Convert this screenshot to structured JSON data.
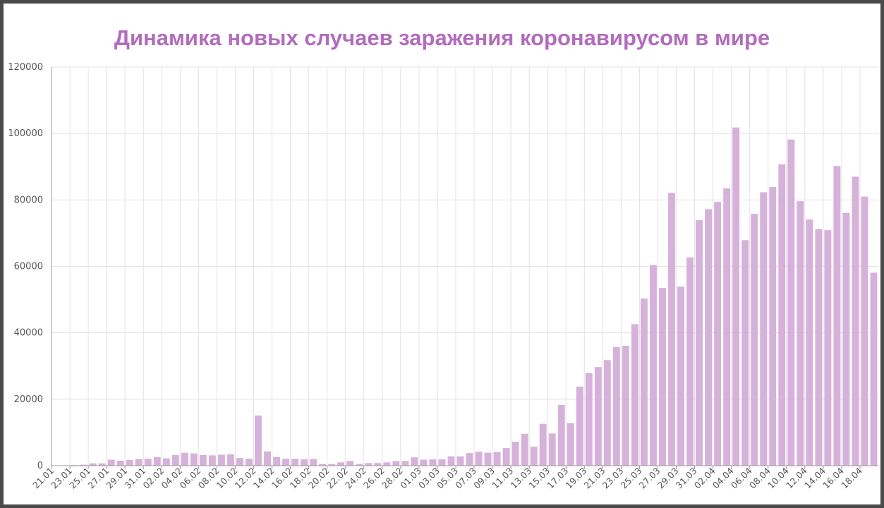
{
  "chart_data": {
    "type": "bar",
    "title": "Динамика новых случаев заражения коронавирусом в мире",
    "xlabel": "",
    "ylabel": "",
    "ylim": [
      0,
      120000
    ],
    "yticks": [
      0,
      20000,
      40000,
      60000,
      80000,
      100000,
      120000
    ],
    "grid": true,
    "legend": "none",
    "categories": [
      "21.01",
      "22.01",
      "23.01",
      "24.01",
      "25.01",
      "26.01",
      "27.01",
      "28.01",
      "29.01",
      "30.01",
      "31.01",
      "01.02",
      "02.02",
      "03.02",
      "04.02",
      "05.02",
      "06.02",
      "07.02",
      "08.02",
      "09.02",
      "10.02",
      "11.02",
      "12.02",
      "13.02",
      "14.02",
      "15.02",
      "16.02",
      "17.02",
      "18.02",
      "19.02",
      "20.02",
      "21.02",
      "22.02",
      "23.02",
      "24.02",
      "25.02",
      "26.02",
      "27.02",
      "28.02",
      "29.02",
      "01.03",
      "02.03",
      "03.03",
      "04.03",
      "05.03",
      "06.03",
      "07.03",
      "08.03",
      "09.03",
      "10.03",
      "11.03",
      "12.03",
      "13.03",
      "14.03",
      "15.03",
      "16.03",
      "17.03",
      "18.03",
      "19.03",
      "20.03",
      "21.03",
      "22.03",
      "23.03",
      "24.03",
      "25.03",
      "26.03",
      "27.03",
      "28.03",
      "29.03",
      "30.03",
      "31.03",
      "01.04",
      "02.04",
      "03.04",
      "04.04",
      "05.04",
      "06.04",
      "07.04",
      "08.04",
      "09.04",
      "10.04",
      "11.04",
      "12.04",
      "13.04",
      "14.04",
      "15.04",
      "16.04",
      "17.04",
      "18.04",
      "19.04"
    ],
    "values": [
      0,
      0,
      200,
      300,
      700,
      700,
      1800,
      1500,
      1700,
      2000,
      2100,
      2600,
      2200,
      3200,
      3900,
      3700,
      3200,
      3100,
      3300,
      3400,
      2300,
      2100,
      15100,
      4300,
      2600,
      2100,
      2100,
      1900,
      2000,
      500,
      500,
      1000,
      1400,
      500,
      800,
      800,
      1000,
      1400,
      1400,
      2500,
      1800,
      1900,
      1900,
      2800,
      2800,
      3800,
      4200,
      3900,
      4100,
      5300,
      7200,
      9600,
      5700,
      12600,
      9700,
      18300,
      12800,
      23800,
      27900,
      29700,
      31800,
      35700,
      36100,
      42600,
      50300,
      60400,
      53500,
      82100,
      53900,
      62700,
      73900,
      77200,
      79400,
      83500,
      101800,
      67900,
      75800,
      82300,
      83900,
      90700,
      98200,
      79600,
      74100,
      71200,
      70900,
      90200,
      76100,
      87000,
      81000,
      58100
    ],
    "color": "#d6b1da",
    "title_color": "#b36bbd"
  }
}
